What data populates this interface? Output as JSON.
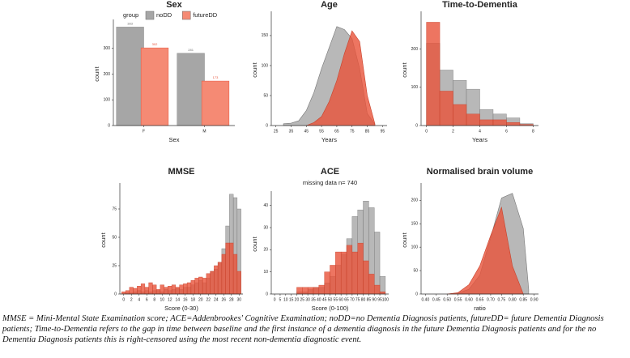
{
  "chart_data": [
    {
      "type": "bar",
      "title": "Sex",
      "xlabel": "Sex",
      "ylabel": "count",
      "legend_title": "group",
      "categories": [
        "F",
        "M"
      ],
      "series": [
        {
          "name": "noDD",
          "color": "#a6a6a6",
          "values": [
            383,
            281
          ]
        },
        {
          "name": "futureDD",
          "color": "#f58a74",
          "values": [
            302,
            173
          ]
        }
      ],
      "ylim": [
        0,
        400
      ],
      "yticks": [
        0,
        100,
        200,
        300
      ]
    },
    {
      "type": "area",
      "title": "Age",
      "xlabel": "Years",
      "ylabel": "count",
      "x": [
        30,
        35,
        40,
        45,
        50,
        55,
        60,
        65,
        70,
        75,
        80,
        85,
        90
      ],
      "series": [
        {
          "color": "#a6a6a6",
          "values": [
            3,
            4,
            8,
            25,
            55,
            95,
            130,
            165,
            160,
            145,
            95,
            20,
            2
          ]
        },
        {
          "color": "#e8533a",
          "values": [
            null,
            null,
            null,
            0,
            5,
            15,
            40,
            75,
            120,
            158,
            140,
            50,
            3
          ]
        }
      ],
      "xlim": [
        22,
        98
      ],
      "xticks": [
        25,
        35,
        45,
        55,
        65,
        75,
        85,
        95
      ],
      "ylim": [
        0,
        185
      ],
      "yticks": [
        0,
        50,
        100,
        150
      ]
    },
    {
      "type": "histogram",
      "title": "Time-to-Dementia",
      "xlabel": "Years",
      "ylabel": "count",
      "bins": [
        0,
        1,
        2,
        3,
        4,
        5,
        6,
        7,
        8
      ],
      "series": [
        {
          "color": "#a6a6a6",
          "values": [
            215,
            145,
            118,
            95,
            42,
            30,
            20,
            5
          ]
        },
        {
          "color": "#e8533a",
          "values": [
            270,
            90,
            55,
            30,
            15,
            15,
            8,
            3
          ]
        }
      ],
      "xlim": [
        -0.4,
        8.4
      ],
      "xticks": [
        0,
        2,
        4,
        6,
        8
      ],
      "ylim": [
        0,
        290
      ],
      "yticks": [
        0,
        100,
        200
      ]
    },
    {
      "type": "histogram",
      "title": "MMSE",
      "xlabel": "Score (0-30)",
      "ylabel": "count",
      "bins": [
        -0.5,
        0.5,
        1.5,
        2.5,
        3.5,
        4.5,
        5.5,
        6.5,
        7.5,
        8.5,
        9.5,
        10.5,
        11.5,
        12.5,
        13.5,
        14.5,
        15.5,
        16.5,
        17.5,
        18.5,
        19.5,
        20.5,
        21.5,
        22.5,
        23.5,
        24.5,
        25.5,
        26.5,
        27.5,
        28.5,
        29.5,
        30.5
      ],
      "series": [
        {
          "color": "#a6a6a6",
          "values": [
            0,
            1,
            1,
            2,
            3,
            2,
            3,
            2,
            3,
            3,
            2,
            4,
            3,
            4,
            5,
            4,
            6,
            6,
            8,
            10,
            12,
            10,
            14,
            20,
            22,
            28,
            40,
            60,
            88,
            85,
            75
          ]
        },
        {
          "color": "#e8533a",
          "values": [
            2,
            3,
            6,
            5,
            7,
            9,
            6,
            10,
            8,
            4,
            8,
            6,
            7,
            8,
            6,
            8,
            9,
            10,
            12,
            14,
            15,
            14,
            18,
            20,
            25,
            28,
            35,
            45,
            45,
            35,
            20
          ]
        }
      ],
      "xlim": [
        -1,
        31
      ],
      "xticks": [
        0,
        2,
        4,
        6,
        8,
        10,
        12,
        14,
        16,
        18,
        20,
        22,
        24,
        26,
        28,
        30
      ],
      "ylim": [
        0,
        95
      ],
      "yticks": [
        0,
        25,
        50,
        75
      ]
    },
    {
      "type": "histogram",
      "title": "ACE",
      "subtitle": "missing data n= 740",
      "xlabel": "Score (0-100)",
      "ylabel": "count",
      "bins": [
        0,
        5,
        10,
        15,
        20,
        25,
        30,
        35,
        40,
        45,
        50,
        55,
        60,
        65,
        70,
        75,
        80,
        85,
        90,
        95,
        100
      ],
      "series": [
        {
          "color": "#a6a6a6",
          "values": [
            0,
            0,
            0,
            0,
            1,
            1,
            2,
            3,
            3,
            5,
            8,
            13,
            18,
            25,
            35,
            38,
            42,
            39,
            28,
            8
          ]
        },
        {
          "color": "#e8533a",
          "values": [
            0,
            0,
            0,
            0,
            3,
            3,
            3,
            3,
            4,
            10,
            13,
            19,
            19,
            22,
            19,
            23,
            15,
            9,
            4,
            1
          ]
        }
      ],
      "xlim": [
        -3,
        103
      ],
      "xticks": [
        0,
        5,
        10,
        15,
        20,
        25,
        30,
        35,
        40,
        45,
        50,
        55,
        60,
        65,
        70,
        75,
        80,
        85,
        90,
        95,
        100
      ],
      "ylim": [
        0,
        45
      ],
      "yticks": [
        0,
        10,
        20,
        30,
        40
      ]
    },
    {
      "type": "area",
      "title": "Normalised brain volume",
      "xlabel": "ratio",
      "ylabel": "count",
      "x": [
        0.5,
        0.55,
        0.6,
        0.65,
        0.7,
        0.75,
        0.8,
        0.85,
        0.875
      ],
      "series": [
        {
          "color": "#a6a6a6",
          "values": [
            0,
            2,
            10,
            40,
            120,
            205,
            215,
            140,
            10
          ]
        },
        {
          "color": "#e8533a",
          "values": [
            0,
            3,
            20,
            60,
            125,
            185,
            60,
            0,
            null
          ]
        }
      ],
      "xlim": [
        0.38,
        0.92
      ],
      "xticks": [
        {
          "value": 0.4,
          "label": "0.40"
        },
        0.45,
        {
          "value": 0.5,
          "label": "0.50"
        },
        0.55,
        {
          "value": 0.6,
          "label": "0.60"
        },
        0.65,
        {
          "value": 0.7,
          "label": "0.70"
        },
        0.75,
        {
          "value": 0.8,
          "label": "0.80"
        },
        0.85,
        {
          "value": 0.9,
          "label": "0.90"
        }
      ],
      "ylim": [
        0,
        230
      ],
      "yticks": [
        0,
        50,
        100,
        150,
        200
      ]
    }
  ],
  "caption": "MMSE = Mini-Mental State Examination score; ACE=Addenbrookes' Cognitive Examination; noDD=no Dementia Diagnosis patients, futureDD= future Dementia Diagnosis patients; Time-to-Dementia refers to the gap in time between baseline and the first instance of a dementia diagnosis in the future Dementia Diagnosis patients and for the no Dementia Diagnosis patients this is right-censored using the most recent non-dementia diagnostic event."
}
